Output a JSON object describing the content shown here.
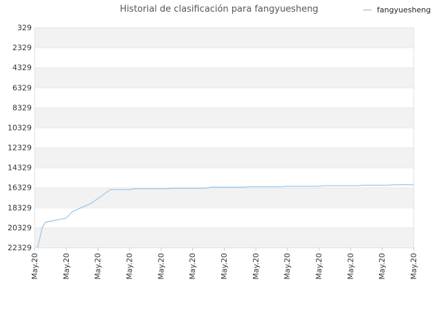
{
  "chart_data": {
    "type": "line",
    "title": "Historial de clasificación para fangyuesheng",
    "xlabel": "",
    "ylabel": "",
    "y_inverted": true,
    "ylim": [
      329,
      22329
    ],
    "y_ticks": [
      "329",
      "2329",
      "4329",
      "6329",
      "8329",
      "10329",
      "12329",
      "14329",
      "16329",
      "18329",
      "20329",
      "22329"
    ],
    "x_ticks": [
      "May.20",
      "May.20",
      "May.20",
      "May.20",
      "May.20",
      "May.20",
      "May.20",
      "May.20",
      "May.20",
      "May.20",
      "May.20",
      "May.20",
      "May.20"
    ],
    "grid": true,
    "legend_position": "top-right",
    "series_color": "#99c9f0",
    "series": [
      {
        "name": "fangyuesheng",
        "x_index": [
          0.1,
          0.25,
          0.35,
          1.0,
          1.2,
          1.8,
          2.4,
          2.7,
          3.0,
          3.2,
          4.2,
          4.4,
          5.4,
          5.6,
          6.6,
          6.8,
          7.8,
          8.0,
          9.0,
          9.2,
          10.2,
          10.4,
          11.2,
          11.4,
          12.0
        ],
        "values": [
          22329,
          20300,
          19800,
          19400,
          18750,
          17900,
          16550,
          16550,
          16550,
          16450,
          16450,
          16400,
          16400,
          16300,
          16300,
          16250,
          16250,
          16200,
          16200,
          16150,
          16150,
          16100,
          16100,
          16050,
          16050
        ]
      }
    ]
  }
}
